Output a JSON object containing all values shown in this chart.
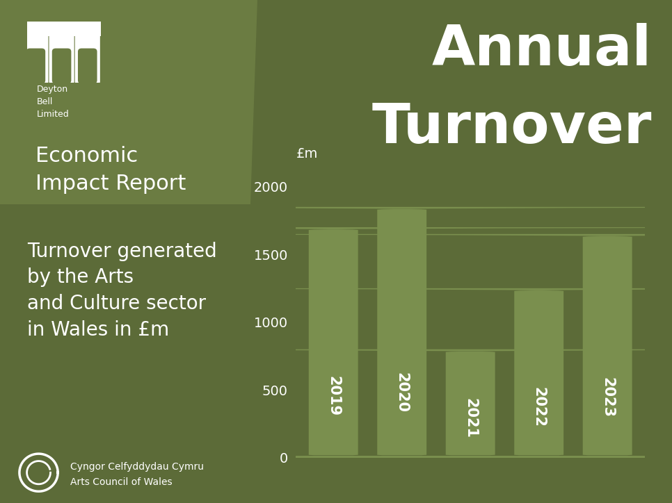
{
  "bg_color": "#5c6b38",
  "panel_color": "#6b7c42",
  "bar_color": "#7a8f4e",
  "title_line1": "Annual",
  "title_line2": "Turnover",
  "subtitle_line1": "Economic",
  "subtitle_line2": "Impact Report",
  "left_text": "Turnover generated\nby the Arts\nand Culture sector\nin Wales in £m",
  "categories": [
    "2019",
    "2020",
    "2021",
    "2022",
    "2023"
  ],
  "values": [
    1700,
    1850,
    800,
    1250,
    1650
  ],
  "ylabel": "£m",
  "yticks": [
    0,
    500,
    1000,
    1500,
    2000
  ],
  "ylim": [
    0,
    2300
  ],
  "white": "#ffffff",
  "logo_text": "Deyton\nBell\nLimited",
  "footer_text1": "Cyngor Celfyddydau Cymru",
  "footer_text2": "Arts Council of Wales"
}
